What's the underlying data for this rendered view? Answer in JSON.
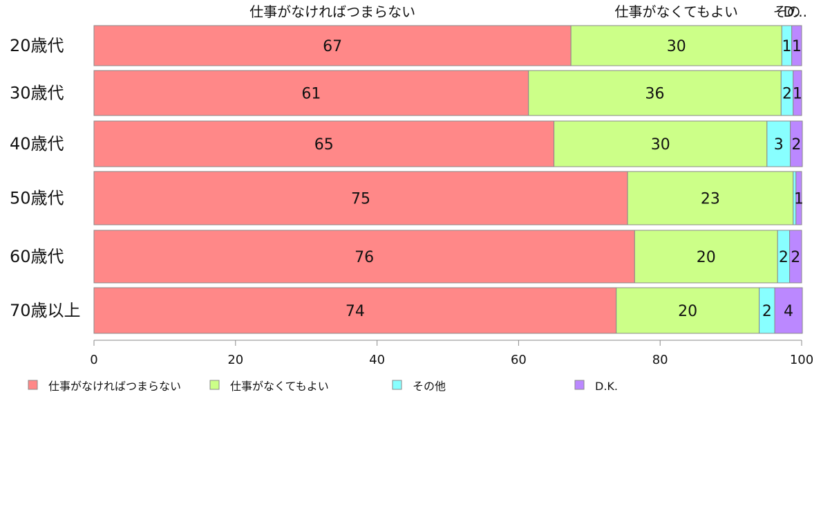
{
  "chart_data": {
    "type": "bar",
    "orientation": "horizontal",
    "stacked": true,
    "categories": [
      "20歳代",
      "30歳代",
      "40歳代",
      "50歳代",
      "60歳代",
      "70歳以上"
    ],
    "series": [
      {
        "name": "仕事がなければつまらない",
        "color": "#ff8888",
        "values": [
          67.4,
          61.4,
          65.0,
          75.4,
          76.4,
          73.8
        ],
        "labels": [
          "67",
          "61",
          "65",
          "75",
          "76",
          "74"
        ]
      },
      {
        "name": "仕事がなくてもよい",
        "color": "#ccff88",
        "values": [
          29.8,
          35.7,
          30.1,
          23.4,
          20.2,
          20.2
        ],
        "labels": [
          "30",
          "36",
          "30",
          "23",
          "20",
          "20"
        ]
      },
      {
        "name": "その他",
        "color": "#88ffff",
        "values": [
          1.4,
          1.7,
          3.3,
          0.4,
          1.7,
          2.2
        ],
        "labels": [
          "1",
          "2",
          "3",
          "",
          "2",
          "2"
        ]
      },
      {
        "name": "D.K.",
        "color": "#bb88ff",
        "values": [
          1.4,
          1.2,
          1.7,
          0.8,
          1.7,
          3.9
        ],
        "labels": [
          "1",
          "1",
          "2",
          "1",
          "2",
          "4"
        ]
      }
    ],
    "top_labels": [
      "仕事がなければつまらない",
      "仕事がなくてもよい",
      "その",
      "D..."
    ],
    "xlim": [
      0,
      100
    ],
    "xticks": [
      "0",
      "20",
      "40",
      "60",
      "80",
      "100"
    ],
    "legend_position": "bottom",
    "grid": false
  }
}
